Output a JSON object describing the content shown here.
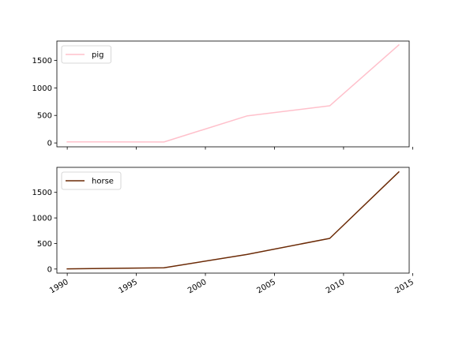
{
  "chart_data": [
    {
      "type": "line",
      "title": "",
      "xlabel": "",
      "ylabel": "",
      "x": [
        1990,
        1997,
        2003,
        2009,
        2014
      ],
      "series": [
        {
          "name": "pig",
          "values": [
            20,
            18,
            490,
            675,
            1780
          ]
        }
      ],
      "xlim": [
        1989.25,
        2014.75
      ],
      "ylim": [
        -70,
        1850
      ],
      "xticks": [
        1990,
        1995,
        2000,
        2005,
        2010,
        2015
      ],
      "yticks": [
        0,
        500,
        1000,
        1500
      ],
      "show_xtick_labels": false,
      "legend": "top-left",
      "grid": false,
      "color": "#ffc0cb"
    },
    {
      "type": "line",
      "title": "",
      "xlabel": "",
      "ylabel": "",
      "x": [
        1990,
        1997,
        2003,
        2009,
        2014
      ],
      "series": [
        {
          "name": "horse",
          "values": [
            3,
            25,
            285,
            600,
            1900
          ]
        }
      ],
      "xlim": [
        1989.25,
        2014.75
      ],
      "ylim": [
        -80,
        1990
      ],
      "xticks": [
        1990,
        1995,
        2000,
        2005,
        2010,
        2015
      ],
      "yticks": [
        0,
        500,
        1000,
        1500
      ],
      "show_xtick_labels": true,
      "legend": "top-left",
      "grid": false,
      "color": "#6b2a06"
    }
  ]
}
